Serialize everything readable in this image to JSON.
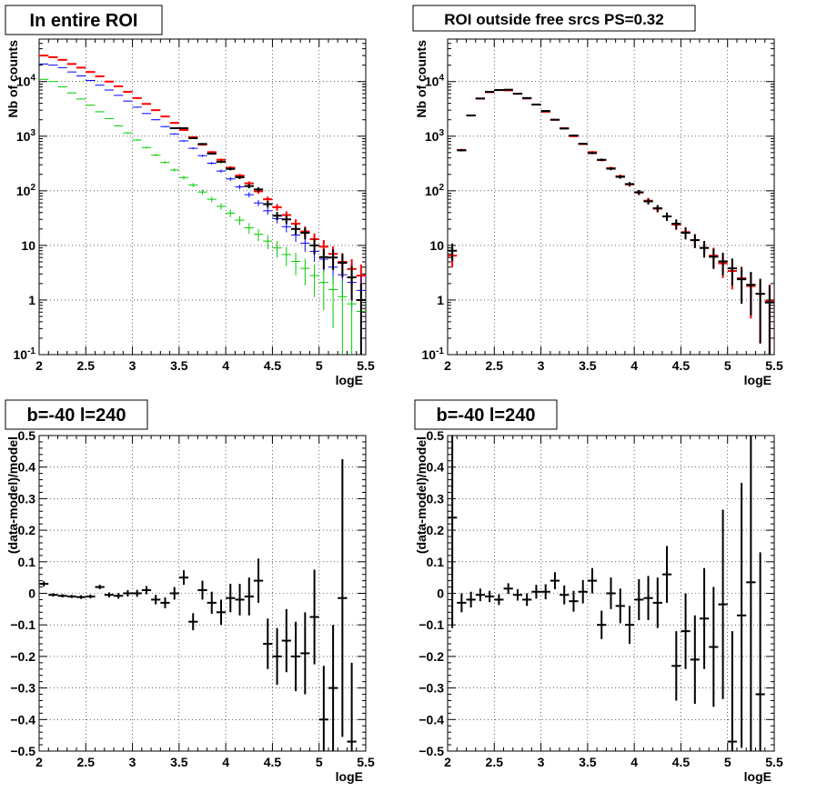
{
  "chart_data": [
    {
      "type": "scatter",
      "panel": "top-left",
      "title": "In entire ROI",
      "xlabel": "logE",
      "ylabel": "Nb of counts",
      "xlim": [
        2,
        5.5
      ],
      "ylim": [
        0.1,
        60000
      ],
      "ylog": true,
      "grid": true,
      "x": [
        2.05,
        2.15,
        2.25,
        2.35,
        2.45,
        2.55,
        2.65,
        2.75,
        2.85,
        2.95,
        3.05,
        3.15,
        3.25,
        3.35,
        3.45,
        3.55,
        3.65,
        3.75,
        3.85,
        3.95,
        4.05,
        4.15,
        4.25,
        4.35,
        4.45,
        4.55,
        4.65,
        4.75,
        4.85,
        4.95,
        5.05,
        5.15,
        5.25,
        5.35,
        5.45
      ],
      "series": [
        {
          "color": "#ff0000",
          "values": [
            30000,
            28000,
            25000,
            21000,
            18000,
            15000,
            12500,
            10000,
            8200,
            6500,
            5000,
            3900,
            3000,
            2300,
            1750,
            1300,
            960,
            700,
            510,
            370,
            265,
            190,
            137,
            98,
            70,
            50,
            36,
            25,
            18,
            13,
            9.5,
            7,
            5,
            3.7,
            2.8
          ]
        },
        {
          "color": "#0000ff",
          "values": [
            21000,
            20000,
            18000,
            15000,
            12700,
            10500,
            8600,
            7000,
            5600,
            4400,
            3400,
            2600,
            2000,
            1500,
            1100,
            820,
            600,
            440,
            320,
            230,
            165,
            118,
            85,
            60,
            43,
            31,
            22,
            15.5,
            11,
            7.8,
            5.6,
            4,
            2.9,
            2.1,
            1.5
          ]
        },
        {
          "color": "#00cc00",
          "values": [
            11000,
            10000,
            8000,
            6200,
            4800,
            3700,
            2800,
            2100,
            1550,
            1150,
            850,
            620,
            450,
            330,
            240,
            175,
            128,
            95,
            70,
            52,
            39,
            29,
            21,
            16,
            12,
            9,
            6.8,
            5.1,
            3.8,
            2.8,
            2.1,
            1.55,
            1.15,
            0.85,
            0.62
          ]
        },
        {
          "color": "#000000",
          "values": [
            null,
            null,
            null,
            null,
            null,
            null,
            null,
            null,
            null,
            null,
            null,
            null,
            null,
            null,
            1400,
            1400,
            920,
            720,
            480,
            340,
            252,
            177,
            122,
            106,
            57,
            35,
            30,
            20,
            17,
            10,
            6.1,
            6,
            4.8,
            2.6,
            1.0
          ]
        }
      ]
    },
    {
      "type": "scatter",
      "panel": "top-right",
      "title": "ROI outside free srcs PS=0.32",
      "xlabel": "logE",
      "ylabel": "Nb of counts",
      "xlim": [
        2,
        5.5
      ],
      "ylim": [
        0.1,
        60000
      ],
      "ylog": true,
      "grid": true,
      "x": [
        2.05,
        2.15,
        2.25,
        2.35,
        2.45,
        2.55,
        2.65,
        2.75,
        2.85,
        2.95,
        3.05,
        3.15,
        3.25,
        3.35,
        3.45,
        3.55,
        3.65,
        3.75,
        3.85,
        3.95,
        4.05,
        4.15,
        4.25,
        4.35,
        4.45,
        4.55,
        4.65,
        4.75,
        4.85,
        4.95,
        5.05,
        5.15,
        5.25,
        5.35,
        5.45
      ],
      "series": [
        {
          "color": "#ff0000",
          "values": [
            6.5,
            560,
            2400,
            4900,
            6400,
            7000,
            6900,
            6000,
            4900,
            3800,
            2800,
            2000,
            1400,
            1000,
            720,
            510,
            365,
            260,
            185,
            131,
            93,
            66,
            47,
            34,
            24,
            17.5,
            12.5,
            9,
            6.5,
            4.7,
            3.4,
            2.5,
            1.8,
            1.3,
            0.95
          ]
        },
        {
          "color": "#000000",
          "values": [
            8,
            550,
            2400,
            4900,
            6500,
            7000,
            7100,
            6000,
            5000,
            3800,
            2900,
            2000,
            1380,
            1030,
            725,
            490,
            370,
            254,
            180,
            133,
            94,
            64,
            48,
            34,
            25,
            17,
            12.5,
            9,
            6.2,
            5.1,
            3.8,
            2.4,
            1.9,
            1.3,
            0.9
          ]
        }
      ]
    },
    {
      "type": "scatter",
      "panel": "bottom-left",
      "title": "b=-40 l=240",
      "xlabel": "logE",
      "ylabel": "(data-model)/model",
      "xlim": [
        2,
        5.5
      ],
      "ylim": [
        -0.5,
        0.5
      ],
      "grid": true,
      "x": [
        2.05,
        2.15,
        2.25,
        2.35,
        2.45,
        2.55,
        2.65,
        2.75,
        2.85,
        2.95,
        3.05,
        3.15,
        3.25,
        3.35,
        3.45,
        3.55,
        3.65,
        3.75,
        3.85,
        3.95,
        4.05,
        4.15,
        4.25,
        4.35,
        4.45,
        4.55,
        4.65,
        4.75,
        4.85,
        4.95,
        5.05,
        5.15,
        5.25,
        5.35,
        5.45
      ],
      "series": [
        {
          "color": "#000000",
          "values": [
            0.03,
            -0.005,
            -0.008,
            -0.01,
            -0.012,
            -0.01,
            0.02,
            -0.005,
            -0.008,
            0.0,
            0.0,
            0.01,
            -0.02,
            -0.03,
            0.0,
            0.05,
            -0.09,
            0.01,
            -0.03,
            -0.06,
            -0.015,
            -0.02,
            -0.01,
            0.04,
            -0.16,
            -0.2,
            -0.15,
            -0.2,
            -0.19,
            -0.075,
            -0.4,
            -0.3,
            -0.015,
            -0.47,
            null
          ],
          "errors": [
            0.008,
            0.005,
            0.005,
            0.005,
            0.006,
            0.006,
            0.007,
            0.008,
            0.009,
            0.01,
            0.011,
            0.013,
            0.015,
            0.017,
            0.02,
            0.023,
            0.027,
            0.03,
            0.035,
            0.04,
            0.045,
            0.05,
            0.06,
            0.07,
            0.08,
            0.09,
            0.1,
            0.11,
            0.13,
            0.15,
            0.17,
            0.2,
            0.44,
            0.25,
            0
          ]
        }
      ]
    },
    {
      "type": "scatter",
      "panel": "bottom-right",
      "title": "b=-40 l=240",
      "xlabel": "logE",
      "ylabel": "(data-model)/model",
      "xlim": [
        2,
        5.5
      ],
      "ylim": [
        -0.5,
        0.5
      ],
      "grid": true,
      "x": [
        2.05,
        2.15,
        2.25,
        2.35,
        2.45,
        2.55,
        2.65,
        2.75,
        2.85,
        2.95,
        3.05,
        3.15,
        3.25,
        3.35,
        3.45,
        3.55,
        3.65,
        3.75,
        3.85,
        3.95,
        4.05,
        4.15,
        4.25,
        4.35,
        4.45,
        4.55,
        4.65,
        4.75,
        4.85,
        4.95,
        5.05,
        5.15,
        5.25,
        5.35,
        5.45
      ],
      "series": [
        {
          "color": "#000000",
          "values": [
            0.24,
            -0.03,
            -0.02,
            -0.005,
            -0.01,
            -0.02,
            0.015,
            -0.005,
            -0.02,
            0.005,
            0.005,
            0.04,
            -0.005,
            -0.025,
            0.005,
            0.04,
            -0.1,
            0.0,
            -0.04,
            -0.1,
            -0.02,
            -0.015,
            -0.03,
            0.06,
            -0.23,
            -0.12,
            -0.21,
            -0.08,
            -0.17,
            -0.035,
            -0.47,
            -0.07,
            0.035,
            -0.32,
            null
          ],
          "errors": [
            0.35,
            0.03,
            0.025,
            0.02,
            0.018,
            0.017,
            0.017,
            0.018,
            0.02,
            0.022,
            0.024,
            0.027,
            0.03,
            0.033,
            0.037,
            0.04,
            0.045,
            0.05,
            0.055,
            0.06,
            0.065,
            0.07,
            0.08,
            0.09,
            0.11,
            0.12,
            0.14,
            0.16,
            0.19,
            0.3,
            0.35,
            0.42,
            0.55,
            0.45,
            0
          ]
        }
      ]
    }
  ]
}
